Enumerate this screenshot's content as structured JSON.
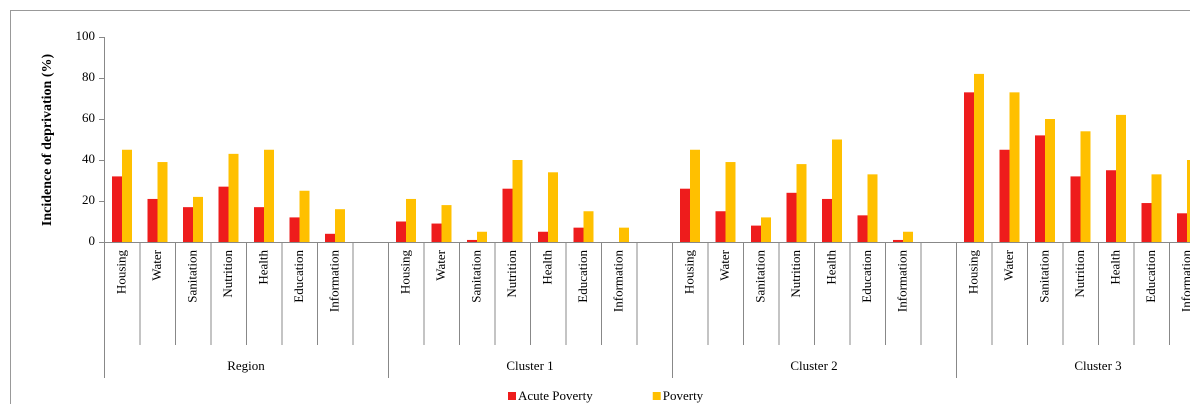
{
  "chart_data": {
    "type": "bar",
    "y_label": "Incidence of deprivation (%)",
    "groups": [
      "Region",
      "Cluster 1",
      "Cluster 2",
      "Cluster 3"
    ],
    "categories": [
      "Housing",
      "Water",
      "Sanitation",
      "Nutrition",
      "Health",
      "Education",
      "Information",
      null,
      "Housing",
      "Water",
      "Sanitation",
      "Nutrition",
      "Health",
      "Education",
      "Information",
      null,
      "Housing",
      "Water",
      "Sanitation",
      "Nutrition",
      "Health",
      "Education",
      "Information",
      null,
      "Housing",
      "Water",
      "Sanitation",
      "Nutrition",
      "Health",
      "Education",
      "Information"
    ],
    "series": [
      {
        "name": "Acute Poverty",
        "color": "#ee1c1c",
        "values": [
          32,
          21,
          17,
          27,
          17,
          12,
          4,
          null,
          10,
          9,
          1,
          26,
          5,
          7,
          0,
          null,
          26,
          15,
          8,
          24,
          21,
          13,
          1,
          null,
          73,
          45,
          52,
          32,
          35,
          19,
          14
        ]
      },
      {
        "name": "Poverty",
        "color": "#ffc000",
        "values": [
          45,
          39,
          22,
          43,
          45,
          25,
          16,
          null,
          21,
          18,
          5,
          40,
          34,
          15,
          7,
          null,
          45,
          39,
          12,
          38,
          50,
          33,
          5,
          null,
          82,
          73,
          60,
          54,
          62,
          33,
          40
        ]
      }
    ],
    "ylim": [
      0,
      100
    ],
    "yticks": [
      0,
      20,
      40,
      60,
      80,
      100
    ],
    "legend": "bottom"
  }
}
